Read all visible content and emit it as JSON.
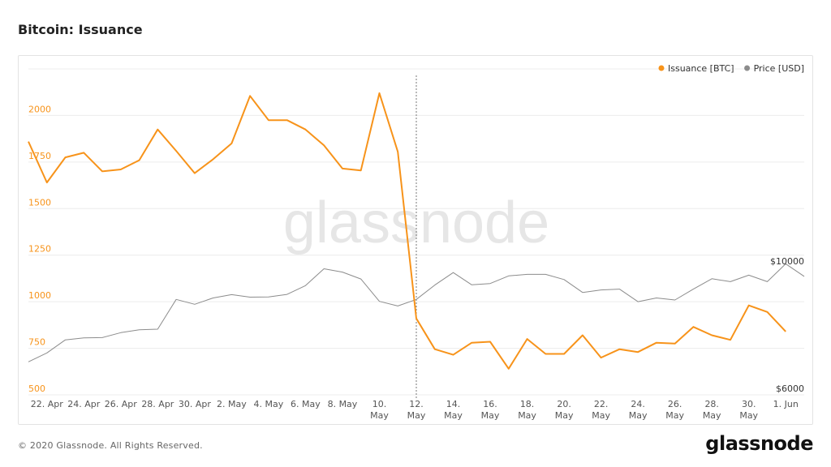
{
  "header": {
    "title": "Bitcoin: Issuance"
  },
  "footer": {
    "copyright": "© 2020 Glassnode. All Rights Reserved.",
    "logo": "glassnode"
  },
  "watermark": "glassnode",
  "colors": {
    "issuance": "#f7931a",
    "price": "#8c8c8c",
    "grid": "#ececec",
    "watermark": "#e6e6e6",
    "axis_text": "#555555"
  },
  "chart_data": {
    "type": "line",
    "title": "Bitcoin: Issuance",
    "legend_position": "top-right",
    "grid": true,
    "x_tick_labels": [
      [
        "22. Apr"
      ],
      [
        "24. Apr"
      ],
      [
        "26. Apr"
      ],
      [
        "28. Apr"
      ],
      [
        "30. Apr"
      ],
      [
        "2. May"
      ],
      [
        "4. May"
      ],
      [
        "6. May"
      ],
      [
        "8. May"
      ],
      [
        "10.",
        "May"
      ],
      [
        "12.",
        "May"
      ],
      [
        "14.",
        "May"
      ],
      [
        "16.",
        "May"
      ],
      [
        "18.",
        "May"
      ],
      [
        "20.",
        "May"
      ],
      [
        "22.",
        "May"
      ],
      [
        "24.",
        "May"
      ],
      [
        "26.",
        "May"
      ],
      [
        "28.",
        "May"
      ],
      [
        "30.",
        "May"
      ],
      [
        "1. Jun"
      ]
    ],
    "x_range": [
      "2020-04-21",
      "2020-06-02"
    ],
    "y_left": {
      "ticks": [
        "500",
        "750",
        "1000",
        "1250",
        "1500",
        "1750",
        "2000"
      ],
      "range": [
        500,
        2250
      ],
      "color": "#f7931a"
    },
    "y_right": {
      "ticks": [
        "$6000",
        "$10000"
      ],
      "range": [
        6000,
        10500
      ],
      "scale": "log"
    },
    "marker_date": "2020-05-12",
    "series": [
      {
        "name": "Issuance [BTC]",
        "axis": "left",
        "color": "#f7931a",
        "x": [
          "2020-04-21",
          "2020-04-22",
          "2020-04-23",
          "2020-04-24",
          "2020-04-25",
          "2020-04-26",
          "2020-04-27",
          "2020-04-28",
          "2020-04-29",
          "2020-04-30",
          "2020-05-01",
          "2020-05-02",
          "2020-05-03",
          "2020-05-04",
          "2020-05-05",
          "2020-05-06",
          "2020-05-07",
          "2020-05-08",
          "2020-05-09",
          "2020-05-10",
          "2020-05-11",
          "2020-05-12",
          "2020-05-13",
          "2020-05-14",
          "2020-05-15",
          "2020-05-16",
          "2020-05-17",
          "2020-05-18",
          "2020-05-19",
          "2020-05-20",
          "2020-05-21",
          "2020-05-22",
          "2020-05-23",
          "2020-05-24",
          "2020-05-25",
          "2020-05-26",
          "2020-05-27",
          "2020-05-28",
          "2020-05-29",
          "2020-05-30",
          "2020-05-31",
          "2020-06-01"
        ],
        "y": [
          1860,
          1640,
          1775,
          1800,
          1700,
          1710,
          1760,
          1925,
          1810,
          1690,
          1765,
          1850,
          2105,
          1975,
          1975,
          1925,
          1840,
          1715,
          1705,
          2120,
          1805,
          910,
          745,
          715,
          780,
          785,
          640,
          800,
          720,
          720,
          820,
          700,
          745,
          730,
          780,
          775,
          865,
          820,
          795,
          980,
          945,
          840
        ]
      },
      {
        "name": "Price [USD]",
        "axis": "right",
        "color": "#8c8c8c",
        "x": [
          "2020-04-21",
          "2020-04-22",
          "2020-04-23",
          "2020-04-24",
          "2020-04-25",
          "2020-04-26",
          "2020-04-27",
          "2020-04-28",
          "2020-04-29",
          "2020-04-30",
          "2020-05-01",
          "2020-05-02",
          "2020-05-03",
          "2020-05-04",
          "2020-05-05",
          "2020-05-06",
          "2020-05-07",
          "2020-05-08",
          "2020-05-09",
          "2020-05-10",
          "2020-05-11",
          "2020-05-12",
          "2020-05-13",
          "2020-05-14",
          "2020-05-15",
          "2020-05-16",
          "2020-05-17",
          "2020-05-18",
          "2020-05-19",
          "2020-05-20",
          "2020-05-21",
          "2020-05-22",
          "2020-05-23",
          "2020-05-24",
          "2020-05-25",
          "2020-05-26",
          "2020-05-27",
          "2020-05-28",
          "2020-05-29",
          "2020-05-30",
          "2020-05-31",
          "2020-06-01",
          "2020-06-02"
        ],
        "y": [
          6850,
          7100,
          7480,
          7540,
          7550,
          7700,
          7790,
          7810,
          8800,
          8630,
          8850,
          8970,
          8880,
          8890,
          8980,
          9300,
          9950,
          9820,
          9550,
          8730,
          8570,
          8800,
          9320,
          9800,
          9330,
          9380,
          9670,
          9730,
          9730,
          9530,
          9050,
          9140,
          9170,
          8720,
          8850,
          8780,
          9170,
          9560,
          9450,
          9700,
          9450,
          10150,
          9650
        ]
      }
    ]
  }
}
